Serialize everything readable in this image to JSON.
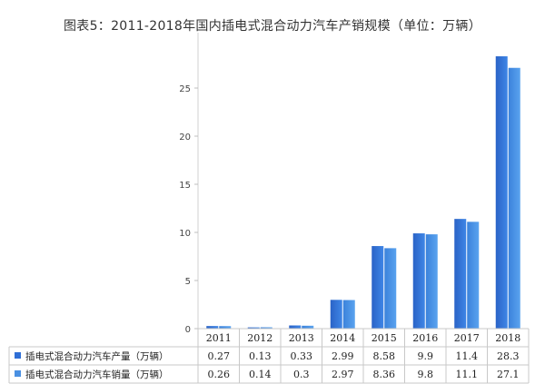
{
  "title": "图表5：2011-2018年国内插电式混合动力汽车产销规模（单位：万辆）",
  "chart_data": {
    "type": "bar",
    "title": "图表5：2011-2018年国内插电式混合动力汽车产销规模（单位：万辆）",
    "categories": [
      "2011",
      "2012",
      "2013",
      "2014",
      "2015",
      "2016",
      "2017",
      "2018"
    ],
    "series": [
      {
        "name": "插电式混合动力汽车产量（万辆）",
        "values": [
          0.27,
          0.13,
          0.33,
          2.99,
          8.58,
          9.9,
          11.4,
          28.3
        ],
        "labels": [
          "0.27",
          "0.13",
          "0.33",
          "2.99",
          "8.58",
          "9.9",
          "11.4",
          "28.3"
        ],
        "color": "#2f6fd6"
      },
      {
        "name": "插电式混合动力汽车销量（万辆）",
        "values": [
          0.26,
          0.14,
          0.3,
          2.97,
          8.36,
          9.8,
          11.1,
          27.1
        ],
        "labels": [
          "0.26",
          "0.14",
          "0.3",
          "2.97",
          "8.36",
          "9.8",
          "11.1",
          "27.1"
        ],
        "color": "#4a90e2"
      }
    ],
    "yticks": [
      0,
      5,
      10,
      15,
      20,
      25
    ],
    "ylim": [
      0,
      30
    ],
    "grid": false,
    "legend": "data-table-left"
  }
}
